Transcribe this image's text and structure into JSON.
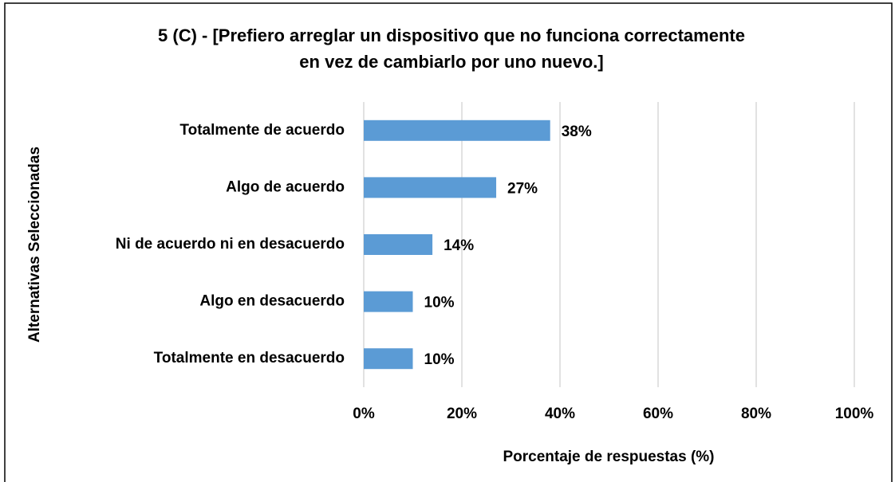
{
  "chart_data": {
    "type": "barh",
    "title": [
      "5 (C) - [Prefiero arreglar un dispositivo que no funciona correctamente",
      "en vez de cambiarlo por uno nuevo.]"
    ],
    "x_label": "Porcentaje de respuestas (%)",
    "y_label": "Alternativas Seleccionadas",
    "categories": [
      "Totalmente de acuerdo",
      "Algo de acuerdo",
      "Ni de acuerdo ni en desacuerdo",
      "Algo en desacuerdo",
      "Totalmente en desacuerdo"
    ],
    "values": [
      38,
      27,
      14,
      10,
      10
    ],
    "value_labels": [
      "38%",
      "27%",
      "14%",
      "10%",
      "10%"
    ],
    "color": "#5b9bd5",
    "xlim": [
      0,
      100
    ],
    "xticks": [
      {
        "value": 0,
        "label": "0%"
      },
      {
        "value": 20,
        "label": "20%"
      },
      {
        "value": 40,
        "label": "40%"
      },
      {
        "value": 60,
        "label": "60%"
      },
      {
        "value": 80,
        "label": "80%"
      },
      {
        "value": 100,
        "label": "100%"
      }
    ],
    "grid": true
  }
}
